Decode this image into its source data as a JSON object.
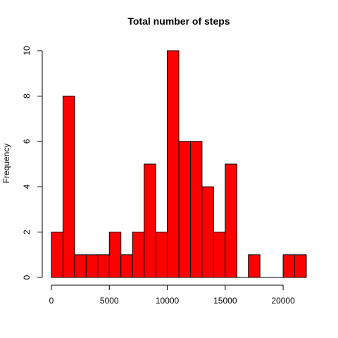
{
  "chart_data": {
    "type": "bar",
    "title": "Total number of steps",
    "xlabel": "",
    "ylabel": "Frequency",
    "bar_color": "#ff0000",
    "bin_width": 1000,
    "x_start": 0,
    "values": [
      2,
      8,
      1,
      1,
      1,
      2,
      1,
      2,
      5,
      2,
      10,
      6,
      6,
      4,
      2,
      5,
      0,
      1,
      0,
      0,
      1,
      1
    ],
    "xlim": [
      0,
      22000
    ],
    "ylim": [
      0,
      10
    ],
    "x_ticks": [
      0,
      5000,
      10000,
      15000,
      20000
    ],
    "y_ticks": [
      0,
      2,
      4,
      6,
      8,
      10
    ],
    "grid": false
  }
}
